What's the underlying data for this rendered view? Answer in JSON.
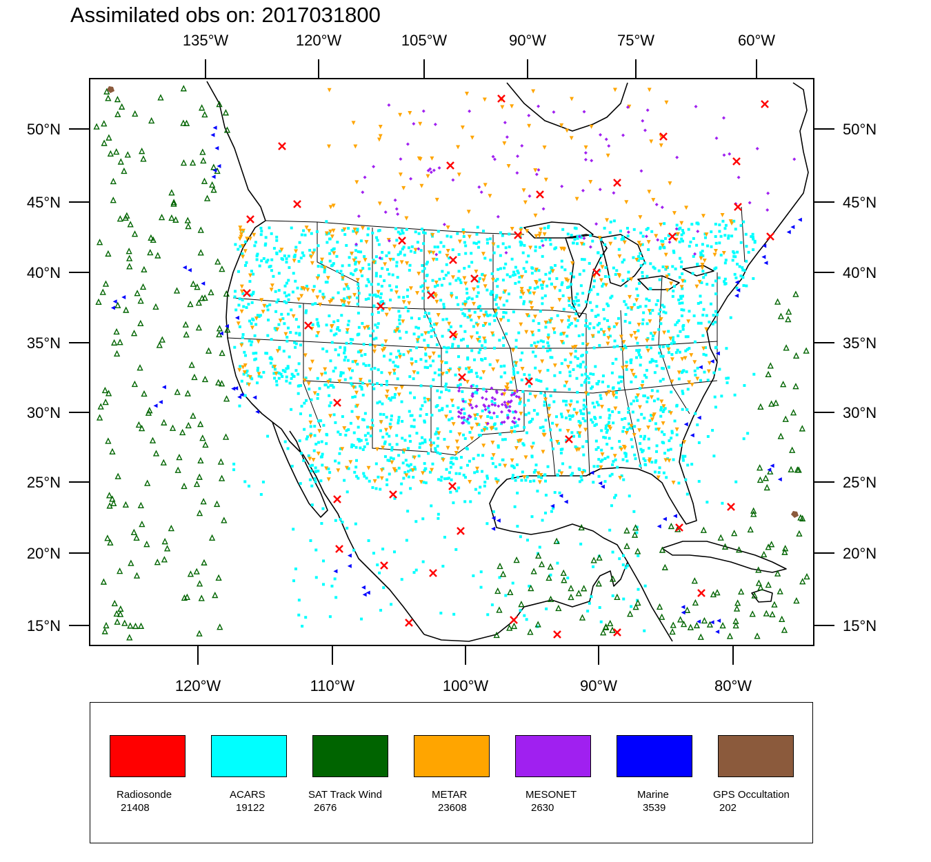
{
  "title": "Assimilated obs on: 2017031800",
  "map": {
    "top_lon_labels": [
      "135°W",
      "120°W",
      "105°W",
      "90°W",
      "75°W",
      "60°W"
    ],
    "bottom_lon_labels": [
      "120°W",
      "110°W",
      "100°W",
      "90°W",
      "80°W"
    ],
    "lat_labels": [
      "50°N",
      "45°N",
      "40°N",
      "35°N",
      "30°N",
      "25°N",
      "20°N",
      "15°N"
    ]
  },
  "legend": [
    {
      "name": "Radiosonde",
      "count": "21408",
      "color": "#ff0000",
      "marker": "x-icon"
    },
    {
      "name": "ACARS",
      "count": "19122",
      "color": "#00ffff",
      "marker": "square-dot-icon"
    },
    {
      "name": "SAT Track Wind",
      "count": "2676",
      "color": "#006400",
      "marker": "triangle-up-icon"
    },
    {
      "name": "METAR",
      "count": "23608",
      "color": "#ffa500",
      "marker": "triangle-down-icon"
    },
    {
      "name": "MESONET",
      "count": "2630",
      "color": "#a020f0",
      "marker": "diamond-icon"
    },
    {
      "name": "Marine",
      "count": "3539",
      "color": "#0000ff",
      "marker": "triangle-left-icon"
    },
    {
      "name": "GPS Occultation",
      "count": "202",
      "color": "#8b5a3c",
      "marker": "polygon-icon"
    }
  ]
}
